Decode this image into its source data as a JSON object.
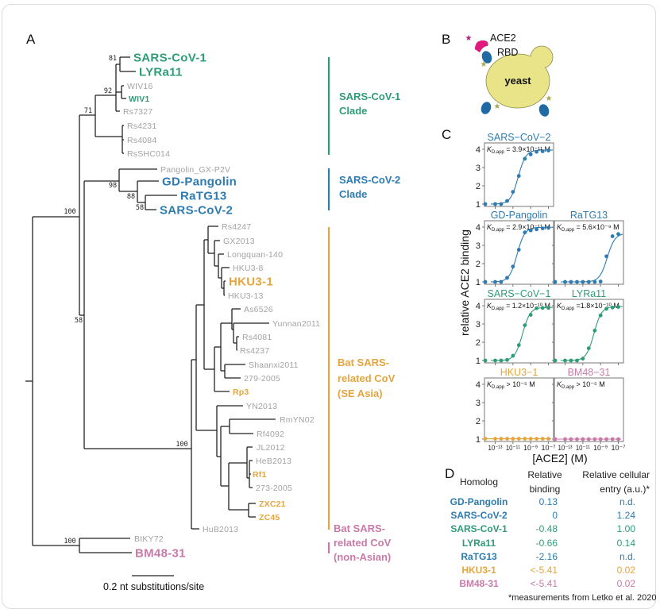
{
  "palette": {
    "green": "#2e9c78",
    "blue": "#2d7bb0",
    "orange": "#e5a53e",
    "pink": "#c97aa9",
    "gray": "#a3a3a3",
    "black": "#111111"
  },
  "panels": {
    "a": "A",
    "b": "B",
    "c": "C",
    "d": "D"
  },
  "tree": {
    "leaves": [
      {
        "name": "SARS-CoV-1",
        "color": "green",
        "style": "major"
      },
      {
        "name": "LYRa11",
        "color": "green",
        "style": "major"
      },
      {
        "name": "WIV16",
        "color": "gray",
        "style": "plain"
      },
      {
        "name": "WIV1",
        "color": "green",
        "style": "minor-bold"
      },
      {
        "name": "Rs7327",
        "color": "gray",
        "style": "plain"
      },
      {
        "name": "Rs4231",
        "color": "gray",
        "style": "plain"
      },
      {
        "name": "Rs4084",
        "color": "gray",
        "style": "plain"
      },
      {
        "name": "RsSHC014",
        "color": "gray",
        "style": "plain"
      },
      {
        "name": "Pangolin_GX-P2V",
        "color": "gray",
        "style": "plain"
      },
      {
        "name": "GD-Pangolin",
        "color": "blue",
        "style": "major"
      },
      {
        "name": "RaTG13",
        "color": "blue",
        "style": "major"
      },
      {
        "name": "SARS-CoV-2",
        "color": "blue",
        "style": "major"
      },
      {
        "name": "Rs4247",
        "color": "gray",
        "style": "plain"
      },
      {
        "name": "GX2013",
        "color": "gray",
        "style": "plain"
      },
      {
        "name": "Longquan-140",
        "color": "gray",
        "style": "plain"
      },
      {
        "name": "HKU3-8",
        "color": "gray",
        "style": "plain"
      },
      {
        "name": "HKU3-1",
        "color": "orange",
        "style": "major"
      },
      {
        "name": "HKU3-13",
        "color": "gray",
        "style": "plain"
      },
      {
        "name": "As6526",
        "color": "gray",
        "style": "plain"
      },
      {
        "name": "Yunnan2011",
        "color": "gray",
        "style": "plain"
      },
      {
        "name": "Rs4081",
        "color": "gray",
        "style": "plain"
      },
      {
        "name": "Rs4237",
        "color": "gray",
        "style": "plain"
      },
      {
        "name": "Shaanxi2011",
        "color": "gray",
        "style": "plain"
      },
      {
        "name": "279-2005",
        "color": "gray",
        "style": "plain"
      },
      {
        "name": "Rp3",
        "color": "orange",
        "style": "minor-bold"
      },
      {
        "name": "YN2013",
        "color": "gray",
        "style": "plain"
      },
      {
        "name": "RmYN02",
        "color": "gray",
        "style": "plain"
      },
      {
        "name": "Rf4092",
        "color": "gray",
        "style": "plain"
      },
      {
        "name": "JL2012",
        "color": "gray",
        "style": "plain"
      },
      {
        "name": "HeB2013",
        "color": "gray",
        "style": "plain"
      },
      {
        "name": "Rf1",
        "color": "orange",
        "style": "minor-bold"
      },
      {
        "name": "273-2005",
        "color": "gray",
        "style": "plain"
      },
      {
        "name": "ZXC21",
        "color": "orange",
        "style": "minor-bold"
      },
      {
        "name": "ZC45",
        "color": "orange",
        "style": "minor-bold"
      },
      {
        "name": "HuB2013",
        "color": "gray",
        "style": "plain"
      },
      {
        "name": "BtKY72",
        "color": "gray",
        "style": "plain"
      },
      {
        "name": "BM48-31",
        "color": "pink",
        "style": "major"
      }
    ],
    "bootstraps": [
      "81",
      "92",
      "71",
      "100",
      "98",
      "88",
      "58",
      "58",
      "100",
      "100"
    ],
    "scale_label": "0.2 nt substitutions/site",
    "clades": [
      {
        "lines": [
          "SARS-CoV-1",
          "Clade"
        ],
        "color": "green"
      },
      {
        "lines": [
          "SARS-CoV-2",
          "Clade"
        ],
        "color": "blue"
      },
      {
        "lines": [
          "Bat SARS-",
          "related CoV",
          "(SE Asia)"
        ],
        "color": "orange"
      },
      {
        "lines": [
          "Bat SARS-",
          "related CoV",
          "(non-Asian)"
        ],
        "color": "pink"
      }
    ]
  },
  "schematic": {
    "ace2": "ACE2",
    "rbd": "RBD",
    "cell": "yeast",
    "colors": {
      "ace2": "#e0197d",
      "rbd": "#1f6aa5",
      "yeast": "#e9e487",
      "tag": "#a8a850"
    }
  },
  "chart_data": {
    "type": "scatter",
    "ylabel": "relative ACE2 binding",
    "xlabel": "[ACE2] (M)",
    "x_scale": "log",
    "xlim": [
      1e-14,
      4e-07
    ],
    "ylim": [
      0.7,
      4.4
    ],
    "yticks": [
      1,
      2,
      3,
      4
    ],
    "xticks": [
      {
        "value": 1e-13,
        "label": "10⁻¹³"
      },
      {
        "value": 1e-11,
        "label": "10⁻¹¹"
      },
      {
        "value": 1e-09,
        "label": "10⁻⁹"
      },
      {
        "value": 1e-07,
        "label": "10⁻⁷"
      }
    ],
    "kd_symbol": "K",
    "kd_sub": "D,app",
    "x": [
      0,
      1e-13,
      4.6e-13,
      2.2e-12,
      1e-11,
      4.6e-11,
      2.2e-10,
      1e-09,
      4.6e-09,
      2.2e-08,
      1e-07
    ],
    "panels": [
      {
        "title": "SARS−CoV−2",
        "color": "blue",
        "kd_text": "= 3.9×10⁻¹¹ M",
        "kd": 3.9e-11,
        "y": [
          1.0,
          1.0,
          1.0,
          1.17,
          1.67,
          2.54,
          3.48,
          3.72,
          3.86,
          3.89,
          3.93
        ]
      },
      {
        "title": "GD-Pangolin",
        "color": "blue",
        "kd_text": "= 2.9×10⁻¹¹ M",
        "kd": 2.9e-11,
        "y": [
          1.0,
          1.0,
          1.0,
          1.22,
          1.84,
          2.76,
          3.71,
          3.82,
          3.88,
          3.93,
          3.96
        ]
      },
      {
        "title": "RaTG13",
        "color": "blue",
        "kd_text": "= 5.6×10⁻⁹ M",
        "kd": 5.6e-09,
        "y": [
          1.0,
          1.0,
          1.0,
          1.0,
          1.0,
          1.0,
          1.0,
          1.02,
          2.4,
          3.5,
          3.62
        ]
      },
      {
        "title": "SARS−CoV−1",
        "color": "green",
        "kd_text": "= 1.2×10⁻¹⁰ M",
        "kd": 1.2e-10,
        "y": [
          1.0,
          1.0,
          1.0,
          1.03,
          1.26,
          1.84,
          2.93,
          3.5,
          3.86,
          3.88,
          3.88
        ]
      },
      {
        "title": "LYRa11",
        "color": "green",
        "kd_text": "=1.8×10⁻¹⁰ M",
        "kd": 1.8e-10,
        "y": [
          1.0,
          1.0,
          1.0,
          1.0,
          1.1,
          1.67,
          2.64,
          3.47,
          3.83,
          3.9,
          3.93
        ]
      },
      {
        "title": "HKU3−1",
        "color": "orange",
        "kd_text": "> 10⁻⁵ M",
        "kd": null,
        "y": [
          1.02,
          1.02,
          1.02,
          1.02,
          1.02,
          1.02,
          1.02,
          1.02,
          1.02,
          1.02,
          1.02
        ]
      },
      {
        "title": "BM48−31",
        "color": "pink",
        "kd_text": "> 10⁻⁵ M",
        "kd": null,
        "y": [
          1.0,
          1.0,
          1.0,
          1.0,
          1.0,
          1.0,
          1.0,
          1.0,
          1.0,
          1.0,
          1.0
        ]
      }
    ]
  },
  "table": {
    "headers": {
      "homolog": "Homolog",
      "binding": [
        "Relative",
        "binding"
      ],
      "entry": [
        "Relative cellular",
        "entry (a.u.)*"
      ]
    },
    "rows": [
      {
        "homolog": "GD-Pangolin",
        "binding": "0.13",
        "entry": "n.d.",
        "color": "blue"
      },
      {
        "homolog": "SARS-CoV-2",
        "binding": "0",
        "entry": "1.24",
        "color": "blue"
      },
      {
        "homolog": "SARS-CoV-1",
        "binding": "-0.48",
        "entry": "1.00",
        "color": "green"
      },
      {
        "homolog": "LYRa11",
        "binding": "-0.66",
        "entry": "0.14",
        "color": "green"
      },
      {
        "homolog": "RaTG13",
        "binding": "-2.16",
        "entry": "n.d.",
        "color": "blue"
      },
      {
        "homolog": "HKU3-1",
        "binding": "<-5.41",
        "entry": "0.02",
        "color": "orange"
      },
      {
        "homolog": "BM48-31",
        "binding": "<-5.41",
        "entry": "0.02",
        "color": "pink"
      }
    ],
    "footnote": "*measurements from Letko et al. 2020"
  }
}
